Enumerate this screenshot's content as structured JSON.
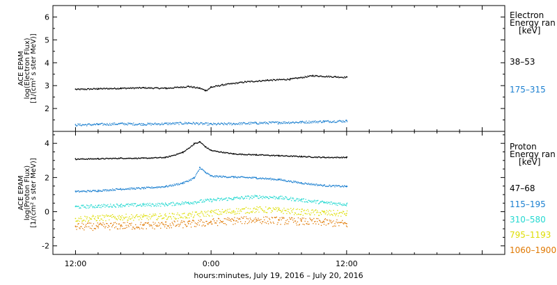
{
  "chart_data": [
    {
      "type": "scatter",
      "panel": "electron",
      "ylabel_lines": [
        "ACE EPAM",
        "log(Electron Flux)",
        "[1/(cm² s ster MeV)]"
      ],
      "ylim": [
        1,
        6.5
      ],
      "yticks": [
        2,
        3,
        4,
        5,
        6
      ],
      "legend_title_lines": [
        "Electron",
        "Energy ran",
        "[keV]"
      ],
      "series": [
        {
          "name": "38–53",
          "color": "#000000",
          "x": [
            0,
            2,
            4,
            6,
            8,
            10,
            11,
            11.5,
            12,
            13,
            15,
            17,
            19,
            21,
            23,
            24
          ],
          "y": [
            2.85,
            2.88,
            2.9,
            2.92,
            2.9,
            2.98,
            2.9,
            2.8,
            2.95,
            3.05,
            3.18,
            3.25,
            3.3,
            3.45,
            3.4,
            3.38
          ]
        },
        {
          "name": "175–315",
          "color": "#1a7fd0",
          "x": [
            0,
            2,
            4,
            6,
            8,
            10,
            12,
            14,
            16,
            18,
            20,
            22,
            24
          ],
          "y": [
            1.3,
            1.32,
            1.35,
            1.33,
            1.35,
            1.38,
            1.33,
            1.35,
            1.38,
            1.4,
            1.42,
            1.45,
            1.47
          ]
        }
      ]
    },
    {
      "type": "scatter",
      "panel": "proton",
      "ylabel_lines": [
        "ACE EPAM",
        "log(Proton Flux)",
        "[1/(cm² s ster MeV)]"
      ],
      "ylim": [
        -2.5,
        4.7
      ],
      "yticks": [
        -2,
        0,
        2,
        4
      ],
      "legend_title_lines": [
        "Proton",
        "Energy ran",
        "[keV]"
      ],
      "series": [
        {
          "name": "47–68",
          "color": "#000000",
          "x": [
            0,
            2,
            4,
            6,
            8,
            9.5,
            10.5,
            11,
            11.5,
            12,
            14,
            16,
            18,
            20,
            22,
            24
          ],
          "y": [
            3.1,
            3.12,
            3.15,
            3.15,
            3.2,
            3.5,
            4.0,
            4.1,
            3.8,
            3.6,
            3.4,
            3.35,
            3.3,
            3.25,
            3.2,
            3.2
          ]
        },
        {
          "name": "115–195",
          "color": "#1a7fd0",
          "x": [
            0,
            2,
            4,
            6,
            8,
            9.5,
            10.5,
            11,
            11.5,
            12,
            14,
            16,
            18,
            20,
            22,
            24
          ],
          "y": [
            1.2,
            1.25,
            1.35,
            1.4,
            1.5,
            1.7,
            2.0,
            2.6,
            2.3,
            2.1,
            2.05,
            2.0,
            1.9,
            1.7,
            1.55,
            1.5
          ]
        },
        {
          "name": "310–580",
          "color": "#22d8d0",
          "x": [
            0,
            2,
            4,
            6,
            8,
            10,
            12,
            14,
            16,
            18,
            20,
            22,
            24
          ],
          "y": [
            0.3,
            0.35,
            0.4,
            0.42,
            0.45,
            0.55,
            0.7,
            0.8,
            0.9,
            0.85,
            0.7,
            0.55,
            0.45
          ]
        },
        {
          "name": "795–1193",
          "color": "#dddd00",
          "x": [
            0,
            2,
            4,
            6,
            8,
            10,
            12,
            14,
            16,
            18,
            20,
            22,
            24
          ],
          "y": [
            -0.4,
            -0.35,
            -0.3,
            -0.3,
            -0.25,
            -0.2,
            -0.05,
            0.05,
            0.15,
            0.1,
            0.0,
            -0.05,
            -0.1
          ]
        },
        {
          "name": "1060–1900",
          "color": "#e07800",
          "x": [
            0,
            2,
            4,
            6,
            8,
            10,
            12,
            14,
            16,
            18,
            20,
            22,
            24
          ],
          "y": [
            -0.85,
            -0.85,
            -0.8,
            -0.8,
            -0.75,
            -0.7,
            -0.6,
            -0.5,
            -0.45,
            -0.5,
            -0.55,
            -0.6,
            -0.7
          ]
        }
      ]
    }
  ],
  "x_axis": {
    "range": [
      -2,
      38
    ],
    "tick_labels": [
      {
        "x": 0,
        "label": "12:00"
      },
      {
        "x": 12,
        "label": "0:00"
      },
      {
        "x": 24,
        "label": "12:00"
      }
    ],
    "xlabel": "hours:minutes, July 19, 2016 – July 20, 2016"
  }
}
